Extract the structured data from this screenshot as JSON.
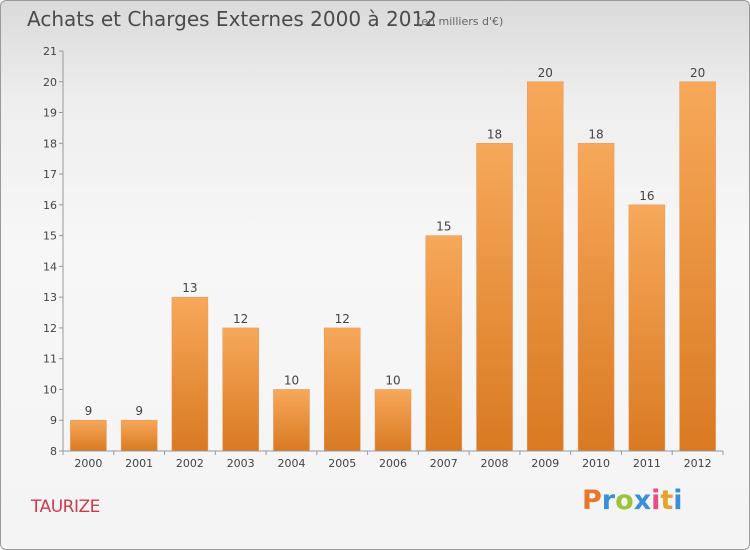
{
  "header": {
    "title": "Achats et Charges Externes 2000 à 2012",
    "subtitle": "(en milliers d'€)"
  },
  "footer": {
    "commune": "TAURIZE",
    "logo_letters": [
      "P",
      "r",
      "o",
      "x",
      "i",
      "t",
      "i"
    ],
    "logo_colors": [
      "#e8762c",
      "#3a8fd6",
      "#9cc33b",
      "#3a8fd6",
      "#e84a8a",
      "#e8a02c",
      "#3a8fd6"
    ]
  },
  "chart_data": {
    "type": "bar",
    "categories": [
      "2000",
      "2001",
      "2002",
      "2003",
      "2004",
      "2005",
      "2006",
      "2007",
      "2008",
      "2009",
      "2010",
      "2011",
      "2012"
    ],
    "values": [
      9,
      9,
      13,
      12,
      10,
      12,
      10,
      15,
      18,
      20,
      18,
      16,
      20
    ],
    "ylim": [
      8,
      21
    ],
    "yticks": [
      "8",
      "9",
      "10",
      "11",
      "12",
      "13",
      "14",
      "15",
      "16",
      "17",
      "18",
      "19",
      "20",
      "21"
    ],
    "grid": false,
    "legend": "none",
    "colors": {
      "bar_top": "#f7a85a",
      "bar_bottom": "#d97a22",
      "axis": "#999999",
      "text": "#444444"
    }
  }
}
